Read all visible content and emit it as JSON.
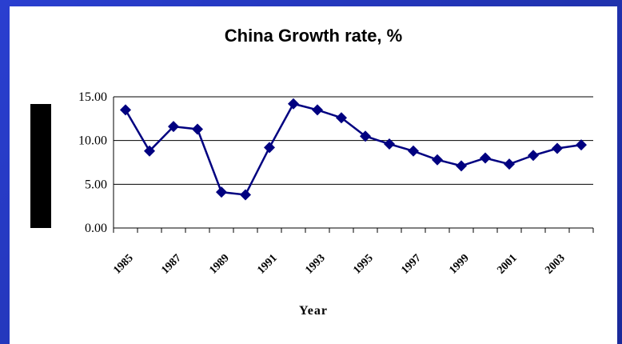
{
  "chart_data": {
    "type": "line",
    "title": "China Growth rate, %",
    "xlabel": "Year",
    "ylabel": "",
    "ylim": [
      0,
      15
    ],
    "yticks": [
      "0.00",
      "5.00",
      "10.00",
      "15.00"
    ],
    "x": [
      1985,
      1986,
      1987,
      1988,
      1989,
      1990,
      1991,
      1992,
      1993,
      1994,
      1995,
      1996,
      1997,
      1998,
      1999,
      2000,
      2001,
      2002,
      2003,
      2004
    ],
    "xtick_labels": [
      "1985",
      "1987",
      "1989",
      "1991",
      "1993",
      "1995",
      "1997",
      "1999",
      "2001",
      "2003"
    ],
    "series": [
      {
        "values": [
          13.5,
          8.8,
          11.6,
          11.3,
          4.1,
          3.8,
          9.2,
          14.2,
          13.5,
          12.6,
          10.5,
          9.6,
          8.8,
          7.8,
          7.1,
          8.0,
          7.3,
          8.3,
          9.1,
          9.5
        ],
        "color": "#000080"
      }
    ],
    "grid": "horizontal",
    "legend": "none"
  }
}
